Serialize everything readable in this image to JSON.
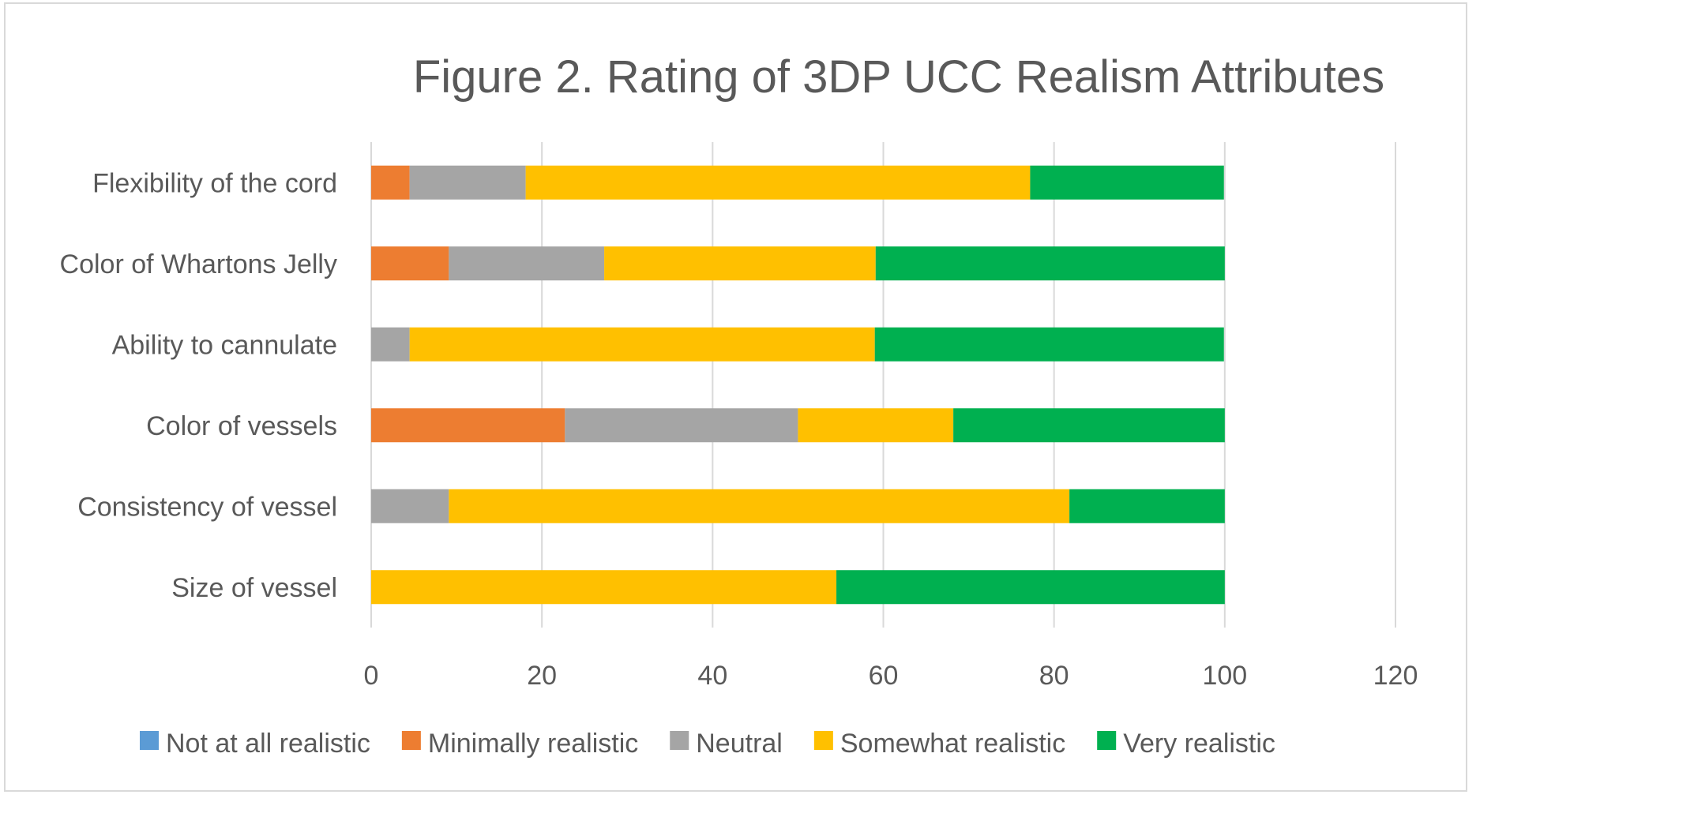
{
  "chart_data": {
    "type": "bar",
    "orientation": "horizontal",
    "stacked": true,
    "title": "Figure 2. Rating of 3DP UCC Realism Attributes",
    "xlabel": "",
    "ylabel": "",
    "xlim": [
      0,
      120
    ],
    "xticks": [
      "0",
      "20",
      "40",
      "60",
      "80",
      "100",
      "120"
    ],
    "grid": "vertical",
    "legend_position": "bottom",
    "categories": [
      "Flexibility of the cord",
      "Color of Whartons Jelly",
      "Ability to cannulate",
      "Color of vessels",
      "Consistency of vessel ",
      "Size of vessel"
    ],
    "series": [
      {
        "name": "Not at all realistic",
        "color": "#5b9bd5",
        "values": [
          0,
          0,
          0,
          0,
          0,
          0
        ]
      },
      {
        "name": "Minimally realistic",
        "color": "#ed7d31",
        "values": [
          4.5,
          9.1,
          0,
          22.7,
          0,
          0
        ]
      },
      {
        "name": "Neutral",
        "color": "#a5a5a5",
        "values": [
          13.6,
          18.2,
          4.5,
          27.3,
          9.1,
          0
        ]
      },
      {
        "name": "Somewhat realistic",
        "color": "#ffc000",
        "values": [
          59.1,
          31.8,
          54.5,
          18.2,
          72.7,
          54.5
        ]
      },
      {
        "name": "Very realistic",
        "color": "#00b050",
        "values": [
          22.7,
          40.9,
          40.9,
          31.8,
          18.2,
          45.5
        ]
      }
    ]
  }
}
